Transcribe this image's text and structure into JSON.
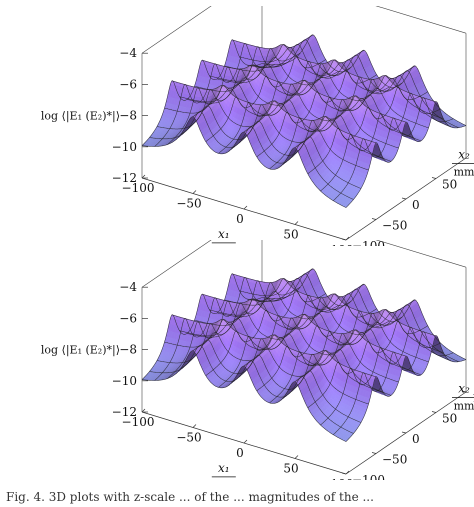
{
  "chart_data": [
    {
      "type": "surface",
      "title": "",
      "zlabel": "log ⟨|E₁ (E₂)*|⟩",
      "xlabel": "x₁",
      "xunit": "mm",
      "ylabel": "x₂",
      "yunit": "mm",
      "zlim": [
        -12,
        -4
      ],
      "xlim": [
        -100,
        100
      ],
      "ylim": [
        -100,
        100
      ],
      "zticks": [
        "-4",
        "-6",
        "-8",
        "-10",
        "-12"
      ],
      "xticks": [
        "-100",
        "-50",
        "0",
        "50",
        "100"
      ],
      "yticks": [
        "-100",
        "-50",
        "0",
        "50"
      ],
      "ridges_x1": [
        -50,
        0,
        50
      ],
      "ridges_x2": [
        -50,
        0,
        50
      ],
      "peak_log": -4,
      "floor_log": -11
    },
    {
      "type": "surface",
      "title": "",
      "zlabel": "log ⟨|E₁ (E₂)*|⟩",
      "xlabel": "x₁",
      "xunit": "mm",
      "ylabel": "x₂",
      "yunit": "mm",
      "zlim": [
        -12,
        -4
      ],
      "xlim": [
        -100,
        100
      ],
      "ylim": [
        -100,
        100
      ],
      "zticks": [
        "-4",
        "-6",
        "-8",
        "-10",
        "-12"
      ],
      "xticks": [
        "-100",
        "-50",
        "0",
        "50",
        "100"
      ],
      "yticks": [
        "-100",
        "-50",
        "0",
        "50",
        "100"
      ],
      "ridges_x1": [
        -50,
        0,
        50
      ],
      "ridges_x2": [
        -50,
        0,
        50
      ],
      "peak_log": -4,
      "floor_log": -11
    }
  ],
  "caption": "Fig. 4. 3D plots with z-scale ... of the ... magnitudes of the ..."
}
